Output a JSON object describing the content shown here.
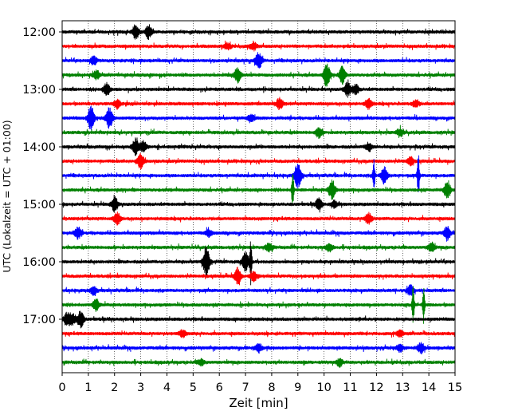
{
  "chart_data": {
    "type": "line",
    "xlabel": "Zeit  [min]",
    "ylabel": "UTC (Lokalzeit = UTC + 01:00)",
    "xlim": [
      0,
      15
    ],
    "x_ticks": [
      "0",
      "1",
      "2",
      "3",
      "4",
      "5",
      "6",
      "7",
      "8",
      "9",
      "10",
      "11",
      "12",
      "13",
      "14",
      "15"
    ],
    "y_ticks": [
      "12:00",
      "13:00",
      "14:00",
      "15:00",
      "16:00",
      "17:00"
    ],
    "grid": "vertical dotted at each minute",
    "colors": [
      "#000000",
      "#ff0000",
      "#0000ff",
      "#008000"
    ],
    "series": [
      {
        "start": "12:00",
        "color": "#000000",
        "events": [
          [
            2.8,
            9
          ],
          [
            3.3,
            8
          ]
        ]
      },
      {
        "start": "12:15",
        "color": "#ff0000",
        "events": [
          [
            7.3,
            5
          ],
          [
            6.3,
            4
          ]
        ]
      },
      {
        "start": "12:30",
        "color": "#0000ff",
        "events": [
          [
            7.5,
            10
          ],
          [
            1.2,
            5
          ]
        ]
      },
      {
        "start": "12:45",
        "color": "#008000",
        "events": [
          [
            6.7,
            9
          ],
          [
            10.1,
            14
          ],
          [
            10.7,
            10
          ],
          [
            1.3,
            5
          ]
        ]
      },
      {
        "start": "13:00",
        "color": "#000000",
        "events": [
          [
            1.7,
            8
          ],
          [
            10.9,
            9
          ],
          [
            11.2,
            6
          ]
        ]
      },
      {
        "start": "13:15",
        "color": "#ff0000",
        "events": [
          [
            8.3,
            7
          ],
          [
            11.7,
            6
          ],
          [
            2.1,
            5
          ],
          [
            13.5,
            5
          ]
        ]
      },
      {
        "start": "13:30",
        "color": "#0000ff",
        "events": [
          [
            1.1,
            14
          ],
          [
            1.8,
            13
          ],
          [
            7.2,
            5
          ]
        ]
      },
      {
        "start": "13:45",
        "color": "#008000",
        "events": [
          [
            9.8,
            6
          ],
          [
            12.9,
            5
          ]
        ]
      },
      {
        "start": "14:00",
        "color": "#000000",
        "events": [
          [
            2.8,
            10
          ],
          [
            3.1,
            7
          ],
          [
            11.7,
            5
          ]
        ]
      },
      {
        "start": "14:15",
        "color": "#ff0000",
        "events": [
          [
            3.0,
            9
          ],
          [
            13.3,
            5
          ]
        ]
      },
      {
        "start": "14:30",
        "color": "#0000ff",
        "events": [
          [
            9.0,
            16
          ],
          [
            11.9,
            20
          ],
          [
            13.6,
            30
          ],
          [
            12.3,
            10
          ]
        ]
      },
      {
        "start": "14:45",
        "color": "#008000",
        "events": [
          [
            8.8,
            25
          ],
          [
            10.3,
            12
          ],
          [
            14.7,
            10
          ]
        ]
      },
      {
        "start": "15:00",
        "color": "#000000",
        "events": [
          [
            2.0,
            9
          ],
          [
            9.8,
            7
          ],
          [
            10.4,
            4
          ]
        ]
      },
      {
        "start": "15:15",
        "color": "#ff0000",
        "events": [
          [
            2.1,
            7
          ],
          [
            11.7,
            7
          ]
        ]
      },
      {
        "start": "15:30",
        "color": "#0000ff",
        "events": [
          [
            0.6,
            7
          ],
          [
            14.7,
            8
          ],
          [
            5.6,
            4
          ]
        ]
      },
      {
        "start": "15:45",
        "color": "#008000",
        "events": [
          [
            7.9,
            5
          ],
          [
            10.2,
            5
          ],
          [
            14.1,
            6
          ]
        ]
      },
      {
        "start": "16:00",
        "color": "#000000",
        "events": [
          [
            7.2,
            28
          ],
          [
            5.5,
            18
          ],
          [
            7.0,
            12
          ]
        ]
      },
      {
        "start": "16:15",
        "color": "#ff0000",
        "events": [
          [
            6.7,
            10
          ],
          [
            7.3,
            6
          ]
        ]
      },
      {
        "start": "16:30",
        "color": "#0000ff",
        "events": [
          [
            1.2,
            5
          ],
          [
            13.3,
            6
          ]
        ]
      },
      {
        "start": "16:45",
        "color": "#008000",
        "events": [
          [
            13.4,
            26
          ],
          [
            13.8,
            22
          ],
          [
            1.3,
            7
          ]
        ]
      },
      {
        "start": "17:00",
        "color": "#000000",
        "events": [
          [
            0.7,
            10
          ],
          [
            0.2,
            8
          ],
          [
            0.4,
            6
          ]
        ]
      },
      {
        "start": "17:15",
        "color": "#ff0000",
        "events": [
          [
            4.6,
            5
          ],
          [
            12.9,
            4
          ]
        ]
      },
      {
        "start": "17:30",
        "color": "#0000ff",
        "events": [
          [
            7.5,
            5
          ],
          [
            13.7,
            6
          ],
          [
            12.9,
            4
          ]
        ]
      },
      {
        "start": "17:45",
        "color": "#008000",
        "events": [
          [
            10.6,
            5
          ],
          [
            5.3,
            4
          ]
        ]
      }
    ]
  }
}
